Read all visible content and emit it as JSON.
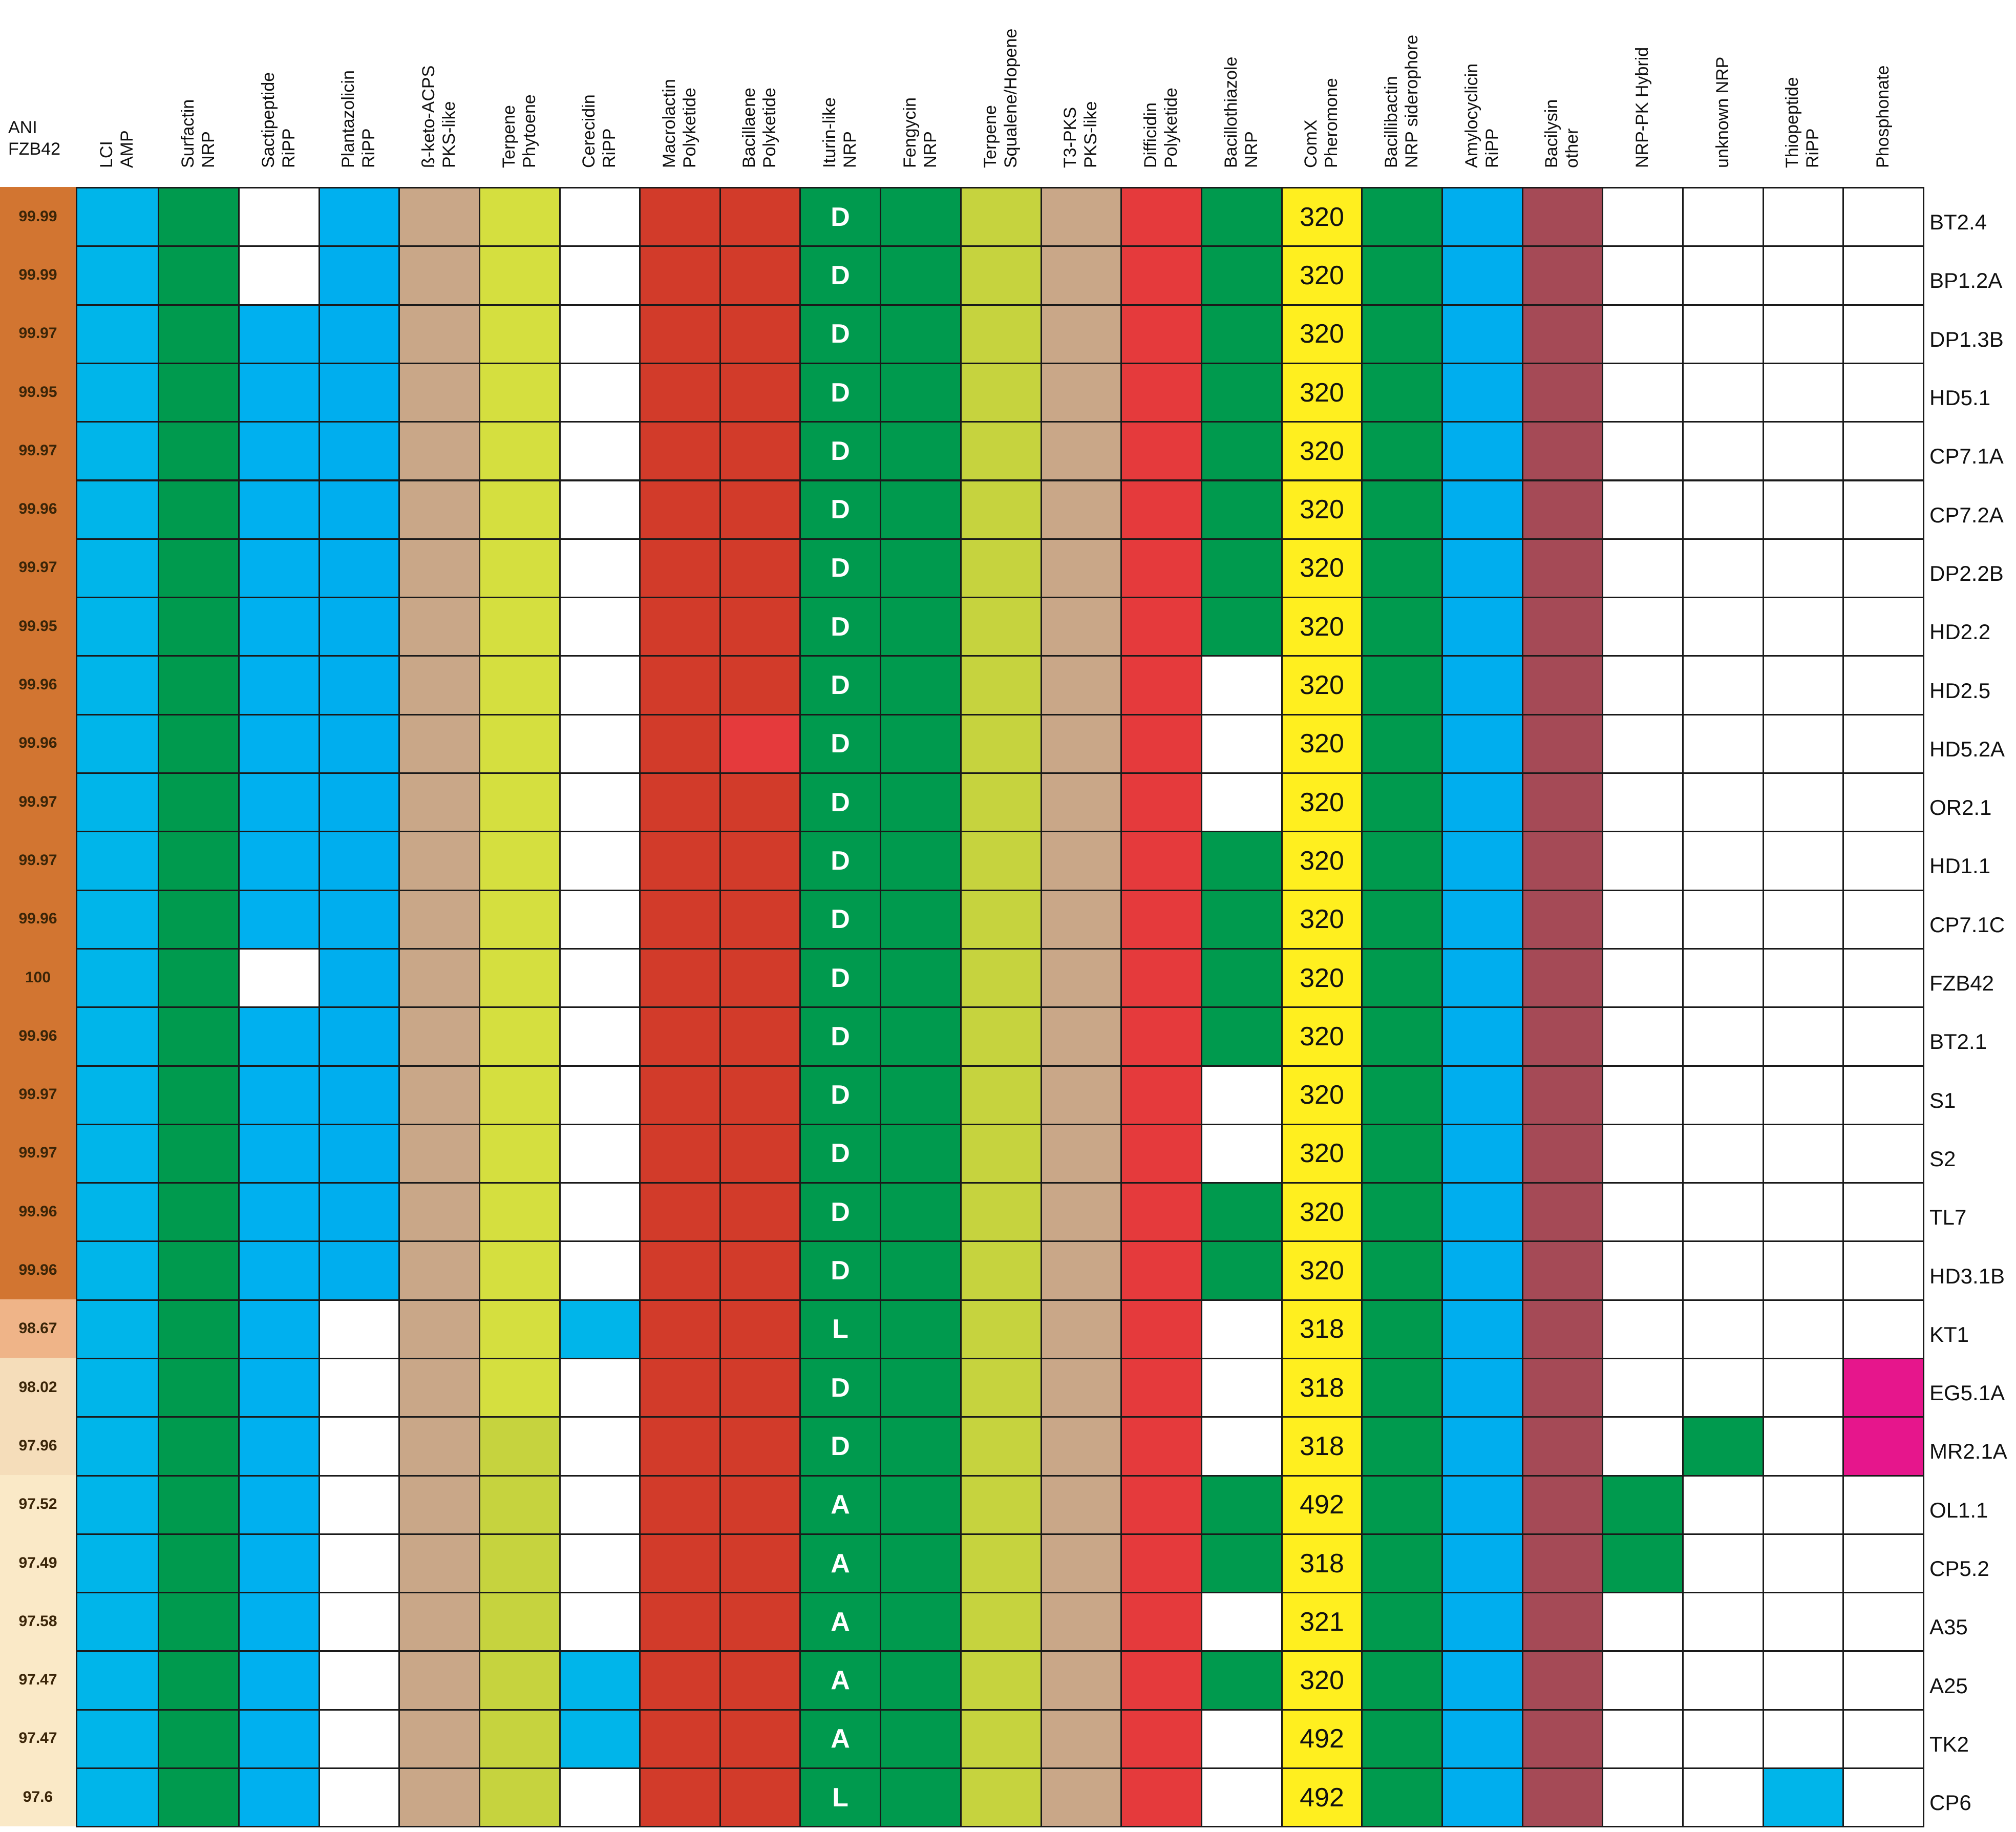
{
  "ani_header": [
    "ANI",
    "FZB42"
  ],
  "columns": [
    {
      "id": "lci",
      "lines": [
        "LCI",
        "AMP"
      ]
    },
    {
      "id": "surfactin",
      "lines": [
        "Surfactin",
        "NRP"
      ]
    },
    {
      "id": "sactipeptide",
      "lines": [
        "Sactipeptide",
        "RiPP"
      ]
    },
    {
      "id": "plantazolicin",
      "lines": [
        "Plantazolicin",
        "RiPP"
      ]
    },
    {
      "id": "bketo",
      "lines": [
        "ß-keto-ACPS",
        "PKS-like"
      ]
    },
    {
      "id": "terpene-phytoene",
      "lines": [
        "Terpene",
        "Phytoene"
      ]
    },
    {
      "id": "cerecidin",
      "lines": [
        "Cerecidin",
        "RiPP"
      ]
    },
    {
      "id": "macrolactin",
      "lines": [
        "Macrolactin",
        "Polyketide"
      ]
    },
    {
      "id": "bacillaene",
      "lines": [
        "Bacillaene",
        "Polyketide"
      ]
    },
    {
      "id": "iturin",
      "lines": [
        "Iturin-like",
        "NRP"
      ]
    },
    {
      "id": "fengycin",
      "lines": [
        "Fengycin",
        "NRP"
      ]
    },
    {
      "id": "terpene-squalene",
      "lines": [
        "Terpene",
        "Squalene/Hopene"
      ]
    },
    {
      "id": "t3pks",
      "lines": [
        "T3-PKS",
        "PKS-like"
      ]
    },
    {
      "id": "difficidin",
      "lines": [
        "Difficidin",
        "Polyketide"
      ]
    },
    {
      "id": "bacillothiazole",
      "lines": [
        "Bacillothiazole",
        "NRP"
      ]
    },
    {
      "id": "comx",
      "lines": [
        "ComX",
        "Pheromone"
      ]
    },
    {
      "id": "bacillibactin",
      "lines": [
        "Bacillibactin",
        "NRP siderophore"
      ]
    },
    {
      "id": "amylocyclicin",
      "lines": [
        "Amylocyclicin",
        "RiPP"
      ]
    },
    {
      "id": "bacilysin",
      "lines": [
        "Bacilysin",
        "other"
      ]
    },
    {
      "id": "nrp-pk-hybrid",
      "lines": [
        "NRP-PK Hybrid"
      ]
    },
    {
      "id": "unknown-nrp",
      "lines": [
        "unknown NRP"
      ]
    },
    {
      "id": "thiopeptide",
      "lines": [
        "Thiopeptide",
        "RiPP"
      ]
    },
    {
      "id": "phosphonate",
      "lines": [
        "Phosphonate"
      ]
    }
  ],
  "colors": {
    "L": "#00b5ea",
    "S": "#00b0ef",
    "P": "#00aeee",
    "G": "#009a4e",
    "T": "#c9a788",
    "Y": "#d5df3f",
    "O": "#c6d33e",
    "R": "#d23b2a",
    "E": "#e53a3c",
    "X": "#ffef1f",
    "B": "#a54a56",
    "M": "#e6168c",
    "W": "#ffffff",
    "ani_high": "#d27531",
    "ani_mid": "#efb488",
    "ani_low": "#f5ddba",
    "ani_vlow": "#fae9c7"
  },
  "rows": [
    {
      "strain": "BT2.4",
      "ani": "99.99",
      "ani_shade": "ani_high",
      "iturin": "D",
      "comx": "320",
      "cells": "LGWSTYWRRGGOTEGXGPBWWWW"
    },
    {
      "strain": "BP1.2A",
      "ani": "99.99",
      "ani_shade": "ani_high",
      "iturin": "D",
      "comx": "320",
      "cells": "LGWPTYWRRGGOTEGXGPBWWWW"
    },
    {
      "strain": "DP1.3B",
      "ani": "99.97",
      "ani_shade": "ani_high",
      "iturin": "D",
      "comx": "320",
      "cells": "LGSPTYWRRGGOTEGXGPBWWWW"
    },
    {
      "strain": "HD5.1",
      "ani": "99.95",
      "ani_shade": "ani_high",
      "iturin": "D",
      "comx": "320",
      "cells": "LGSPTYWRRGGOTEGXGPBWWWW"
    },
    {
      "strain": "CP7.1A",
      "ani": "99.97",
      "ani_shade": "ani_high",
      "iturin": "D",
      "comx": "320",
      "cells": "LGSPTYWRRGGOTEGXGPBWWWW"
    },
    {
      "strain": "CP7.2A",
      "ani": "99.96",
      "ani_shade": "ani_high",
      "iturin": "D",
      "comx": "320",
      "cells": "LGSPTYWRRGGOTEGXGPBWWWW"
    },
    {
      "strain": "DP2.2B",
      "ani": "99.97",
      "ani_shade": "ani_high",
      "iturin": "D",
      "comx": "320",
      "cells": "LGSPTYWRRGGOTEGXGPBWWWW"
    },
    {
      "strain": "HD2.2",
      "ani": "99.95",
      "ani_shade": "ani_high",
      "iturin": "D",
      "comx": "320",
      "cells": "LGSPTYWRRGGOTEGXGPBWWWW"
    },
    {
      "strain": "HD2.5",
      "ani": "99.96",
      "ani_shade": "ani_high",
      "iturin": "D",
      "comx": "320",
      "cells": "LGSPTYWRRGGOTEWXGPBWWWW"
    },
    {
      "strain": "HD5.2A",
      "ani": "99.96",
      "ani_shade": "ani_high",
      "iturin": "D",
      "comx": "320",
      "cells": "LGSPTYWREGGOTEWXGPBWWWW"
    },
    {
      "strain": "OR2.1",
      "ani": "99.97",
      "ani_shade": "ani_high",
      "iturin": "D",
      "comx": "320",
      "cells": "LGSPTYWRRGGOTEWXGPBWWWW"
    },
    {
      "strain": "HD1.1",
      "ani": "99.97",
      "ani_shade": "ani_high",
      "iturin": "D",
      "comx": "320",
      "cells": "LGSPTYWRRGGOTEGXGPBWWWW"
    },
    {
      "strain": "CP7.1C",
      "ani": "99.96",
      "ani_shade": "ani_high",
      "iturin": "D",
      "comx": "320",
      "cells": "LGSPTYWRRGGOTEGXGPBWWWW"
    },
    {
      "strain": "FZB42",
      "ani": "100",
      "ani_shade": "ani_high",
      "iturin": "D",
      "comx": "320",
      "cells": "LGWPTYWRRGGOTEGXGPBWWWW"
    },
    {
      "strain": "BT2.1",
      "ani": "99.96",
      "ani_shade": "ani_high",
      "iturin": "D",
      "comx": "320",
      "cells": "LGSPTYWRRGGOTEGXGPBWWWW"
    },
    {
      "strain": "S1",
      "ani": "99.97",
      "ani_shade": "ani_high",
      "iturin": "D",
      "comx": "320",
      "cells": "LGSPTYWRRGGOTEWXGPBWWWW"
    },
    {
      "strain": "S2",
      "ani": "99.97",
      "ani_shade": "ani_high",
      "iturin": "D",
      "comx": "320",
      "cells": "LGSPTYWRRGGOTEWXGPBWWWW"
    },
    {
      "strain": "TL7",
      "ani": "99.96",
      "ani_shade": "ani_high",
      "iturin": "D",
      "comx": "320",
      "cells": "LGSPTYWRRGGOTEGXGPBWWWW"
    },
    {
      "strain": "HD3.1B",
      "ani": "99.96",
      "ani_shade": "ani_high",
      "iturin": "D",
      "comx": "320",
      "cells": "LGSPTYWRRGGOTEGXGPBWWWW"
    },
    {
      "strain": "KT1",
      "ani": "98.67",
      "ani_shade": "ani_mid",
      "iturin": "L",
      "comx": "318",
      "cells": "LGSWTYLRRGGOTEWXGPBWWWW"
    },
    {
      "strain": "EG5.1A",
      "ani": "98.02",
      "ani_shade": "ani_low",
      "iturin": "D",
      "comx": "318",
      "cells": "LGSWTYWRRGGOTEWXGPBWWWM"
    },
    {
      "strain": "MR2.1A",
      "ani": "97.96",
      "ani_shade": "ani_low",
      "iturin": "D",
      "comx": "318",
      "cells": "LGSWTOWRRGGOTEWXGPBWGWM"
    },
    {
      "strain": "OL1.1",
      "ani": "97.52",
      "ani_shade": "ani_vlow",
      "iturin": "A",
      "comx": "492",
      "cells": "LGSWTOWRRGGOTEGXGPBGWWW"
    },
    {
      "strain": "CP5.2",
      "ani": "97.49",
      "ani_shade": "ani_vlow",
      "iturin": "A",
      "comx": "318",
      "cells": "LGSWTOWRRGGOTEGXGPBGWWW"
    },
    {
      "strain": "A35",
      "ani": "97.58",
      "ani_shade": "ani_vlow",
      "iturin": "A",
      "comx": "321",
      "cells": "LGSWTOWRRGGOTEWXGPBWWWW"
    },
    {
      "strain": "A25",
      "ani": "97.47",
      "ani_shade": "ani_vlow",
      "iturin": "A",
      "comx": "320",
      "cells": "LGSWTOLRRGGOTEGXGPBWWWW"
    },
    {
      "strain": "TK2",
      "ani": "97.47",
      "ani_shade": "ani_vlow",
      "iturin": "A",
      "comx": "492",
      "cells": "LGSWTOLRRGGOTEWXGPBWWWW"
    },
    {
      "strain": "CP6",
      "ani": "97.6",
      "ani_shade": "ani_vlow",
      "iturin": "L",
      "comx": "492",
      "cells": "LGSWTOWRRGGOTEWXGPBWWLW"
    }
  ]
}
